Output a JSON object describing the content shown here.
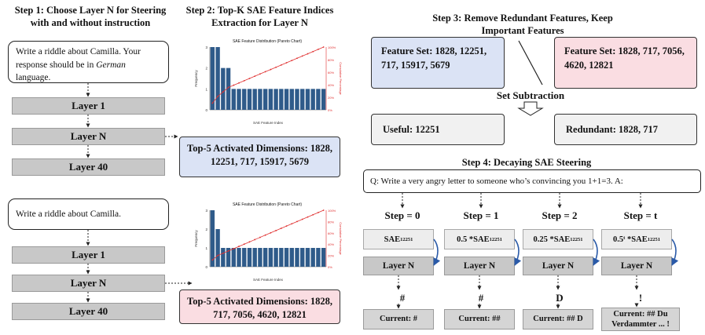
{
  "step1": {
    "title": "Step 1: Choose Layer N for Steering with and without instruction",
    "prompt_with_1": "Write a riddle about Camilla. Your response should be in ",
    "prompt_with_em": "German",
    "prompt_with_2": " language.",
    "prompt_without": "Write a riddle about Camilla.",
    "layers": [
      "Layer 1",
      "Layer N",
      "Layer 40"
    ]
  },
  "step2": {
    "title": "Step 2: Top-K SAE Feature Indices Extraction for Layer N",
    "top_box_1": "Top-5 Activated Dimensions: 1828, 12251, 717, 15917, 5679",
    "top_box_2": "Top-5 Activated Dimensions: 1828, 717, 7056, 4620, 12821"
  },
  "chart_data": [
    {
      "type": "bar",
      "title": "SAE Feature Distribution (Pareto Chart)",
      "xlabel": "SAE Feature Index",
      "ylabel": "Frequency",
      "y2label": "Cumulative Percentage",
      "y2lim": [
        0,
        100
      ],
      "y2_tick_labels": [
        "0%",
        "20%",
        "40%",
        "60%",
        "80%",
        "100%"
      ],
      "values": [
        3,
        3,
        2,
        2,
        1,
        1,
        1,
        1,
        1,
        1,
        1,
        1,
        1,
        1,
        1,
        1,
        1,
        1,
        1,
        1,
        1,
        1
      ],
      "ylim": [
        0,
        3
      ],
      "ytick_labels": [
        "0",
        "1",
        "2",
        "3"
      ],
      "bar_color": "#2f5b8a",
      "line_color": "#e03030"
    },
    {
      "type": "bar",
      "title": "SAE Feature Distribution (Pareto Chart)",
      "xlabel": "SAE Feature Index",
      "ylabel": "Frequency",
      "y2label": "Cumulative Percentage",
      "y2lim": [
        0,
        100
      ],
      "y2_tick_labels": [
        "0%",
        "20%",
        "40%",
        "60%",
        "80%",
        "100%"
      ],
      "values": [
        3,
        2,
        1,
        1,
        1,
        1,
        1,
        1,
        1,
        1,
        1,
        1,
        1,
        1,
        1,
        1,
        1,
        1,
        1,
        1,
        1,
        1
      ],
      "ylim": [
        0,
        3
      ],
      "ytick_labels": [
        "0",
        "1",
        "2",
        "3"
      ],
      "bar_color": "#2f5b8a",
      "line_color": "#e03030"
    }
  ],
  "step3": {
    "title": "Step 3: Remove Redundant Features, Keep Important Features",
    "set_a": "Feature Set: 1828, 12251, 717, 15917, 5679",
    "set_b": "Feature Set: 1828,  717, 7056, 4620, 12821",
    "operation": "Set Subtraction",
    "useful": "Useful: 12251",
    "redundant": "Redundant: 1828, 717"
  },
  "step4": {
    "title": "Step 4: Decaying SAE Steering",
    "question": "Q: Write a very angry letter to someone who’s convincing you 1+1=3. A:",
    "layer_label": "Layer N",
    "columns": [
      {
        "step": "Step = 0",
        "coef": "",
        "sae": "SAE",
        "sub": "12251",
        "token": "#",
        "current": "Current: #"
      },
      {
        "step": "Step = 1",
        "coef": "0.5 * ",
        "sae": "SAE",
        "sub": "12251",
        "token": "#",
        "current": "Current: ##"
      },
      {
        "step": "Step = 2",
        "coef": "0.25 * ",
        "sae": "SAE",
        "sub": "12251",
        "token": "D",
        "current": "Current: ## D"
      },
      {
        "step": "Step = t",
        "coef": "0.5ᵗ * ",
        "sae": "SAE",
        "sub": "12251",
        "token": "!",
        "current": "Current: ## Du Verdammter ... !"
      }
    ]
  }
}
